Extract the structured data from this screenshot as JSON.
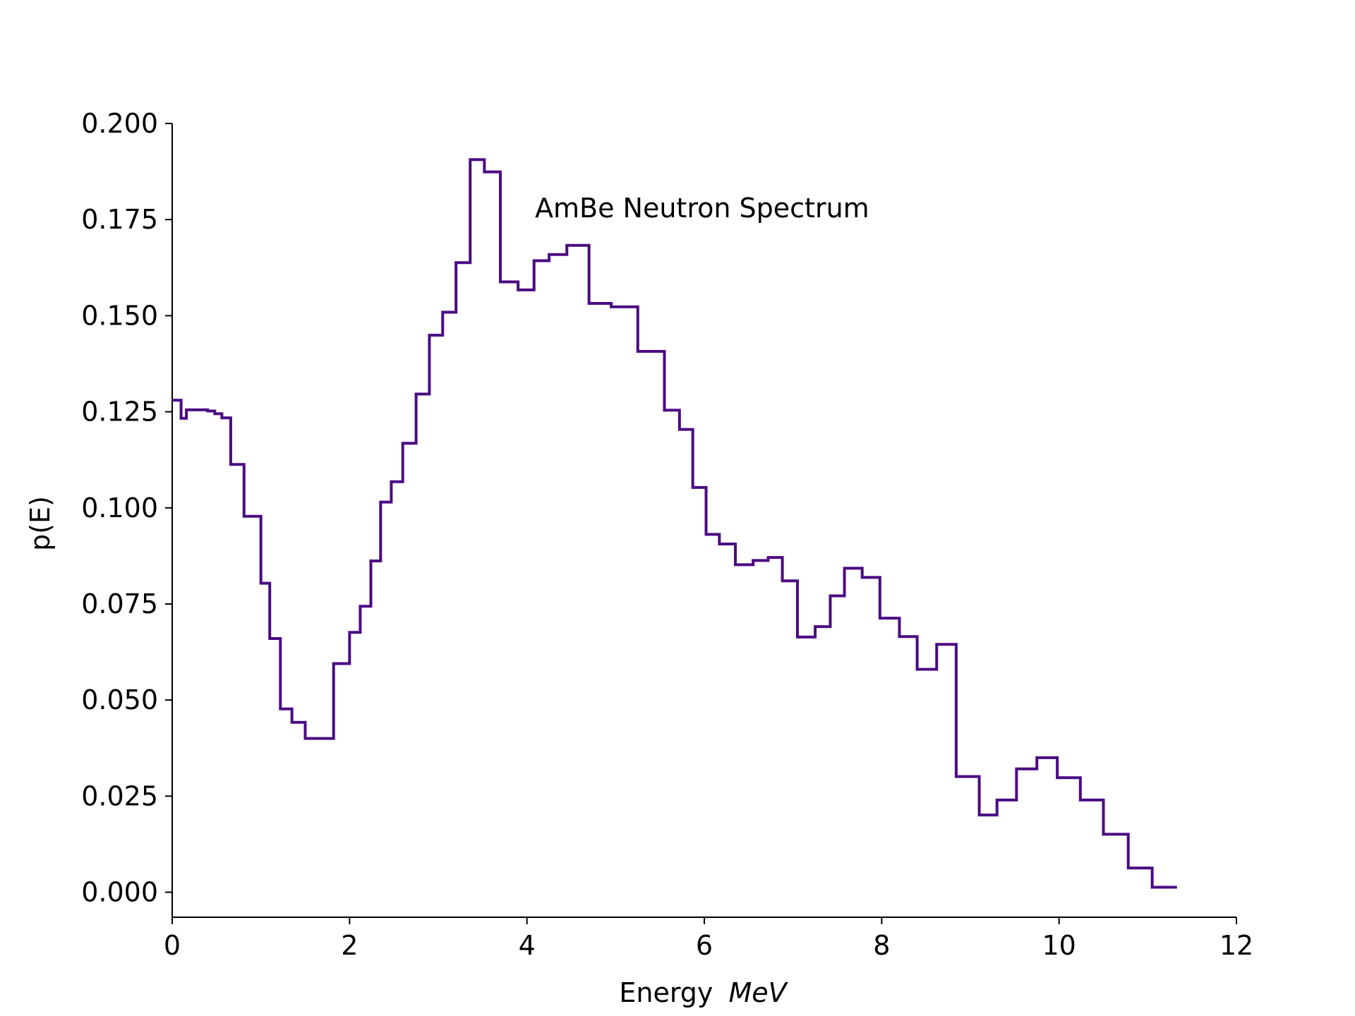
{
  "chart_data": {
    "type": "line",
    "step": "post",
    "annotation": "AmBe Neutron Spectrum",
    "xlabel": "Energy",
    "xlabel_unit": "MeV",
    "ylabel": "p(E)",
    "xlim": [
      0,
      12
    ],
    "ylim": [
      -0.0065,
      0.2
    ],
    "xticks": [
      0,
      2,
      4,
      6,
      8,
      10,
      12
    ],
    "xtick_labels": [
      "0",
      "2",
      "4",
      "6",
      "8",
      "10",
      "12"
    ],
    "yticks": [
      0.0,
      0.025,
      0.05,
      0.075,
      0.1,
      0.125,
      0.15,
      0.175,
      0.2
    ],
    "ytick_labels": [
      "0.000",
      "0.025",
      "0.050",
      "0.075",
      "0.100",
      "0.125",
      "0.150",
      "0.175",
      "0.200"
    ],
    "grid": false,
    "line_color": "#4b0a82",
    "series": [
      {
        "x": [
          0.0,
          0.1,
          0.16,
          0.4,
          0.48,
          0.56,
          0.66,
          0.81,
          1.0,
          1.1,
          1.22,
          1.35,
          1.5,
          1.82,
          2.0,
          2.12,
          2.24,
          2.35,
          2.47,
          2.6,
          2.75,
          2.9,
          3.05,
          3.2,
          3.36,
          3.52,
          3.7,
          3.9,
          4.08,
          4.25,
          4.45,
          4.7,
          4.95,
          5.25,
          5.55,
          5.72,
          5.87,
          6.02,
          6.17,
          6.35,
          6.55,
          6.72,
          6.88,
          7.05,
          7.25,
          7.42,
          7.58,
          7.78,
          7.98,
          8.2,
          8.4,
          8.62,
          8.84,
          9.1,
          9.3,
          9.52,
          9.75,
          9.98,
          10.24,
          10.5,
          10.78,
          11.05,
          11.33
        ],
        "y": [
          0.128,
          0.1233,
          0.1255,
          0.1252,
          0.1245,
          0.1234,
          0.1113,
          0.0978,
          0.0804,
          0.066,
          0.0477,
          0.0442,
          0.04,
          0.0595,
          0.0676,
          0.0744,
          0.0862,
          0.1015,
          0.1068,
          0.1168,
          0.1296,
          0.1449,
          0.1509,
          0.1638,
          0.1906,
          0.1874,
          0.1588,
          0.1567,
          0.1643,
          0.1659,
          0.1683,
          0.1532,
          0.1523,
          0.1407,
          0.1254,
          0.1204,
          0.1053,
          0.0931,
          0.0906,
          0.0852,
          0.0863,
          0.0871,
          0.081,
          0.0664,
          0.0691,
          0.0771,
          0.0843,
          0.0819,
          0.0713,
          0.0665,
          0.058,
          0.0645,
          0.0301,
          0.0201,
          0.024,
          0.0321,
          0.035,
          0.0298,
          0.024,
          0.0151,
          0.0063,
          0.0013,
          0.0013
        ]
      }
    ]
  }
}
